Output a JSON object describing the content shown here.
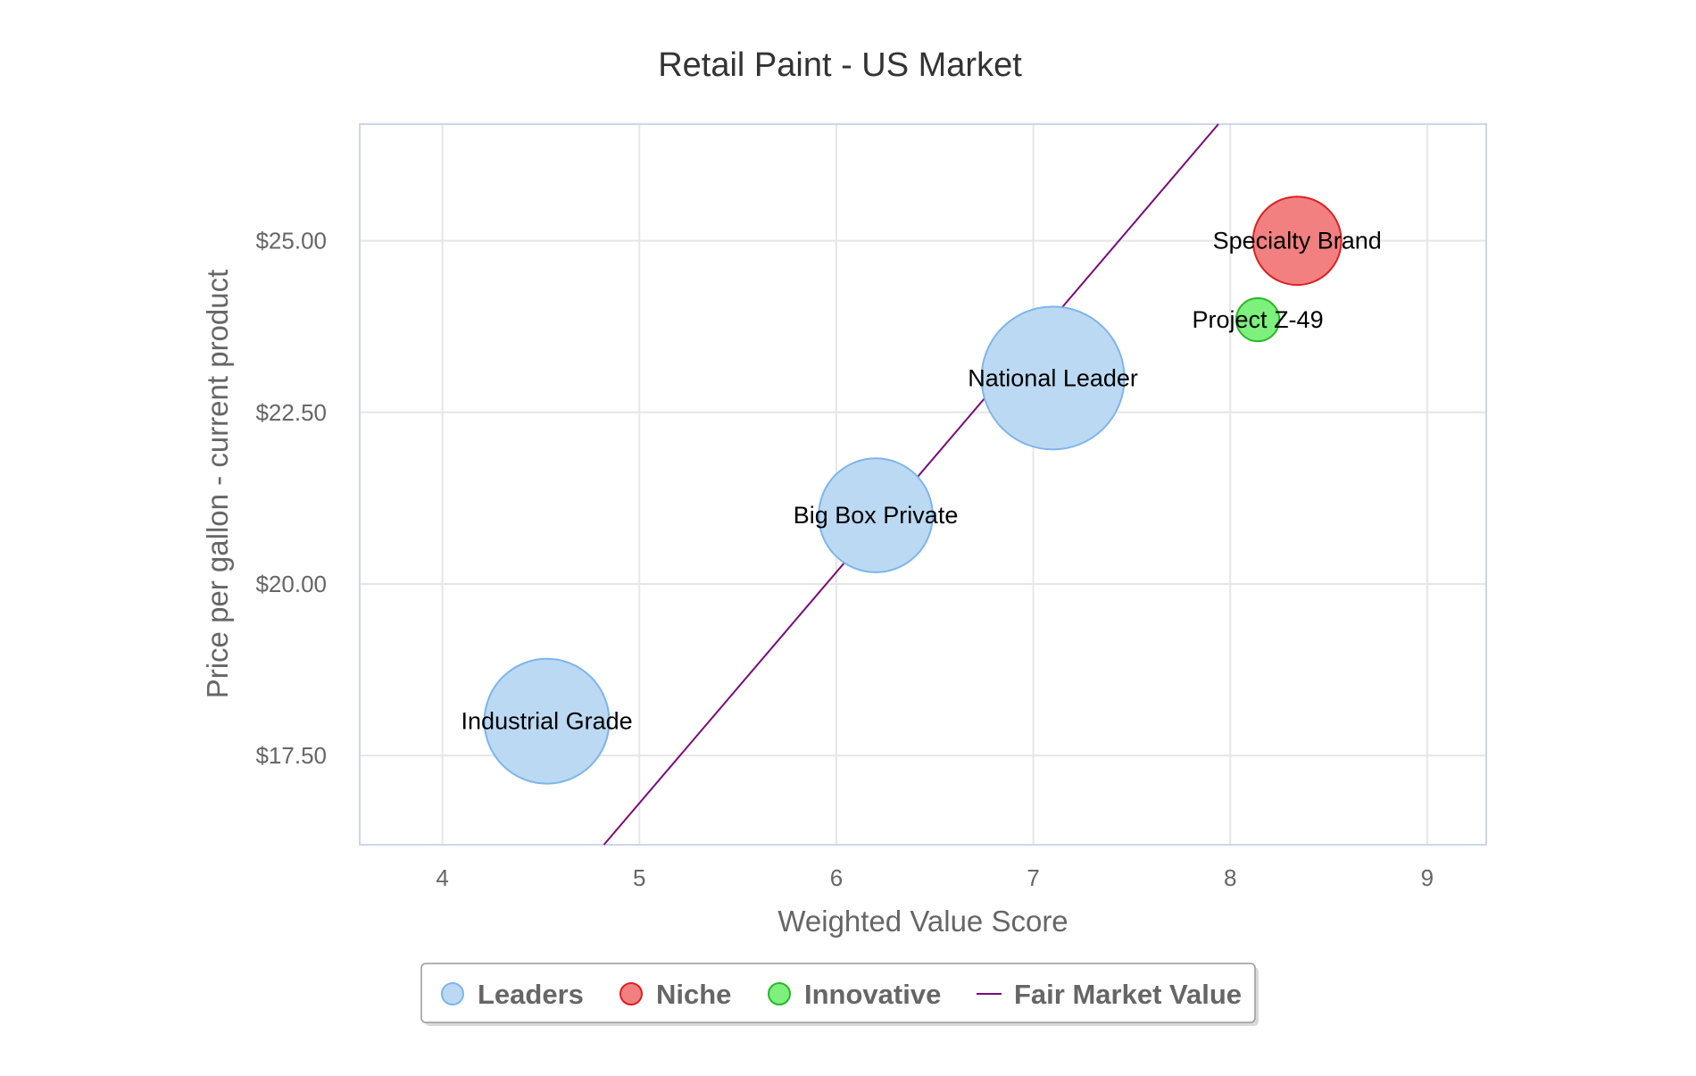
{
  "chart_data": {
    "type": "bubble",
    "title": "Retail Paint - US Market",
    "xlabel": "Weighted Value Score",
    "ylabel": "Price per gallon - current product",
    "xlim": [
      3.58,
      9.3
    ],
    "ylim": [
      16.2,
      26.7
    ],
    "x_ticks": [
      4,
      5,
      6,
      7,
      8,
      9
    ],
    "x_tick_labels": [
      "4",
      "5",
      "6",
      "7",
      "8",
      "9"
    ],
    "y_ticks": [
      17.5,
      20,
      22.5,
      25
    ],
    "y_tick_labels": [
      "$17.50",
      "$20.00",
      "$22.50",
      "$25.00"
    ],
    "grid": true,
    "legend_position": "bottom",
    "series": [
      {
        "name": "Leaders",
        "color": "#7cb5ec",
        "fill": "#bcd9f3",
        "stroke": "#7cb5ec",
        "points": [
          {
            "x": 4.53,
            "y": 18.0,
            "size": 4.2,
            "label": "Industrial Grade"
          },
          {
            "x": 6.2,
            "y": 21.0,
            "size": 3.5,
            "label": "Big Box Private"
          },
          {
            "x": 7.1,
            "y": 23.0,
            "size": 5.5,
            "label": "National Leader"
          }
        ]
      },
      {
        "name": "Niche",
        "color": "#e8292b",
        "fill": "#f28080",
        "stroke": "#e01f1f",
        "points": [
          {
            "x": 8.34,
            "y": 25.0,
            "size": 2.1,
            "label": "Specialty Brand"
          }
        ]
      },
      {
        "name": "Innovative",
        "color": "#2ecc2e",
        "fill": "#7ef07e",
        "stroke": "#27b827",
        "points": [
          {
            "x": 8.14,
            "y": 23.85,
            "size": 0.5,
            "label": "Project Z-49"
          }
        ]
      }
    ],
    "line_series": {
      "name": "Fair Market Value",
      "color": "#7b0a7b",
      "points": [
        [
          4.82,
          16.2
        ],
        [
          7.94,
          26.7
        ]
      ]
    }
  }
}
